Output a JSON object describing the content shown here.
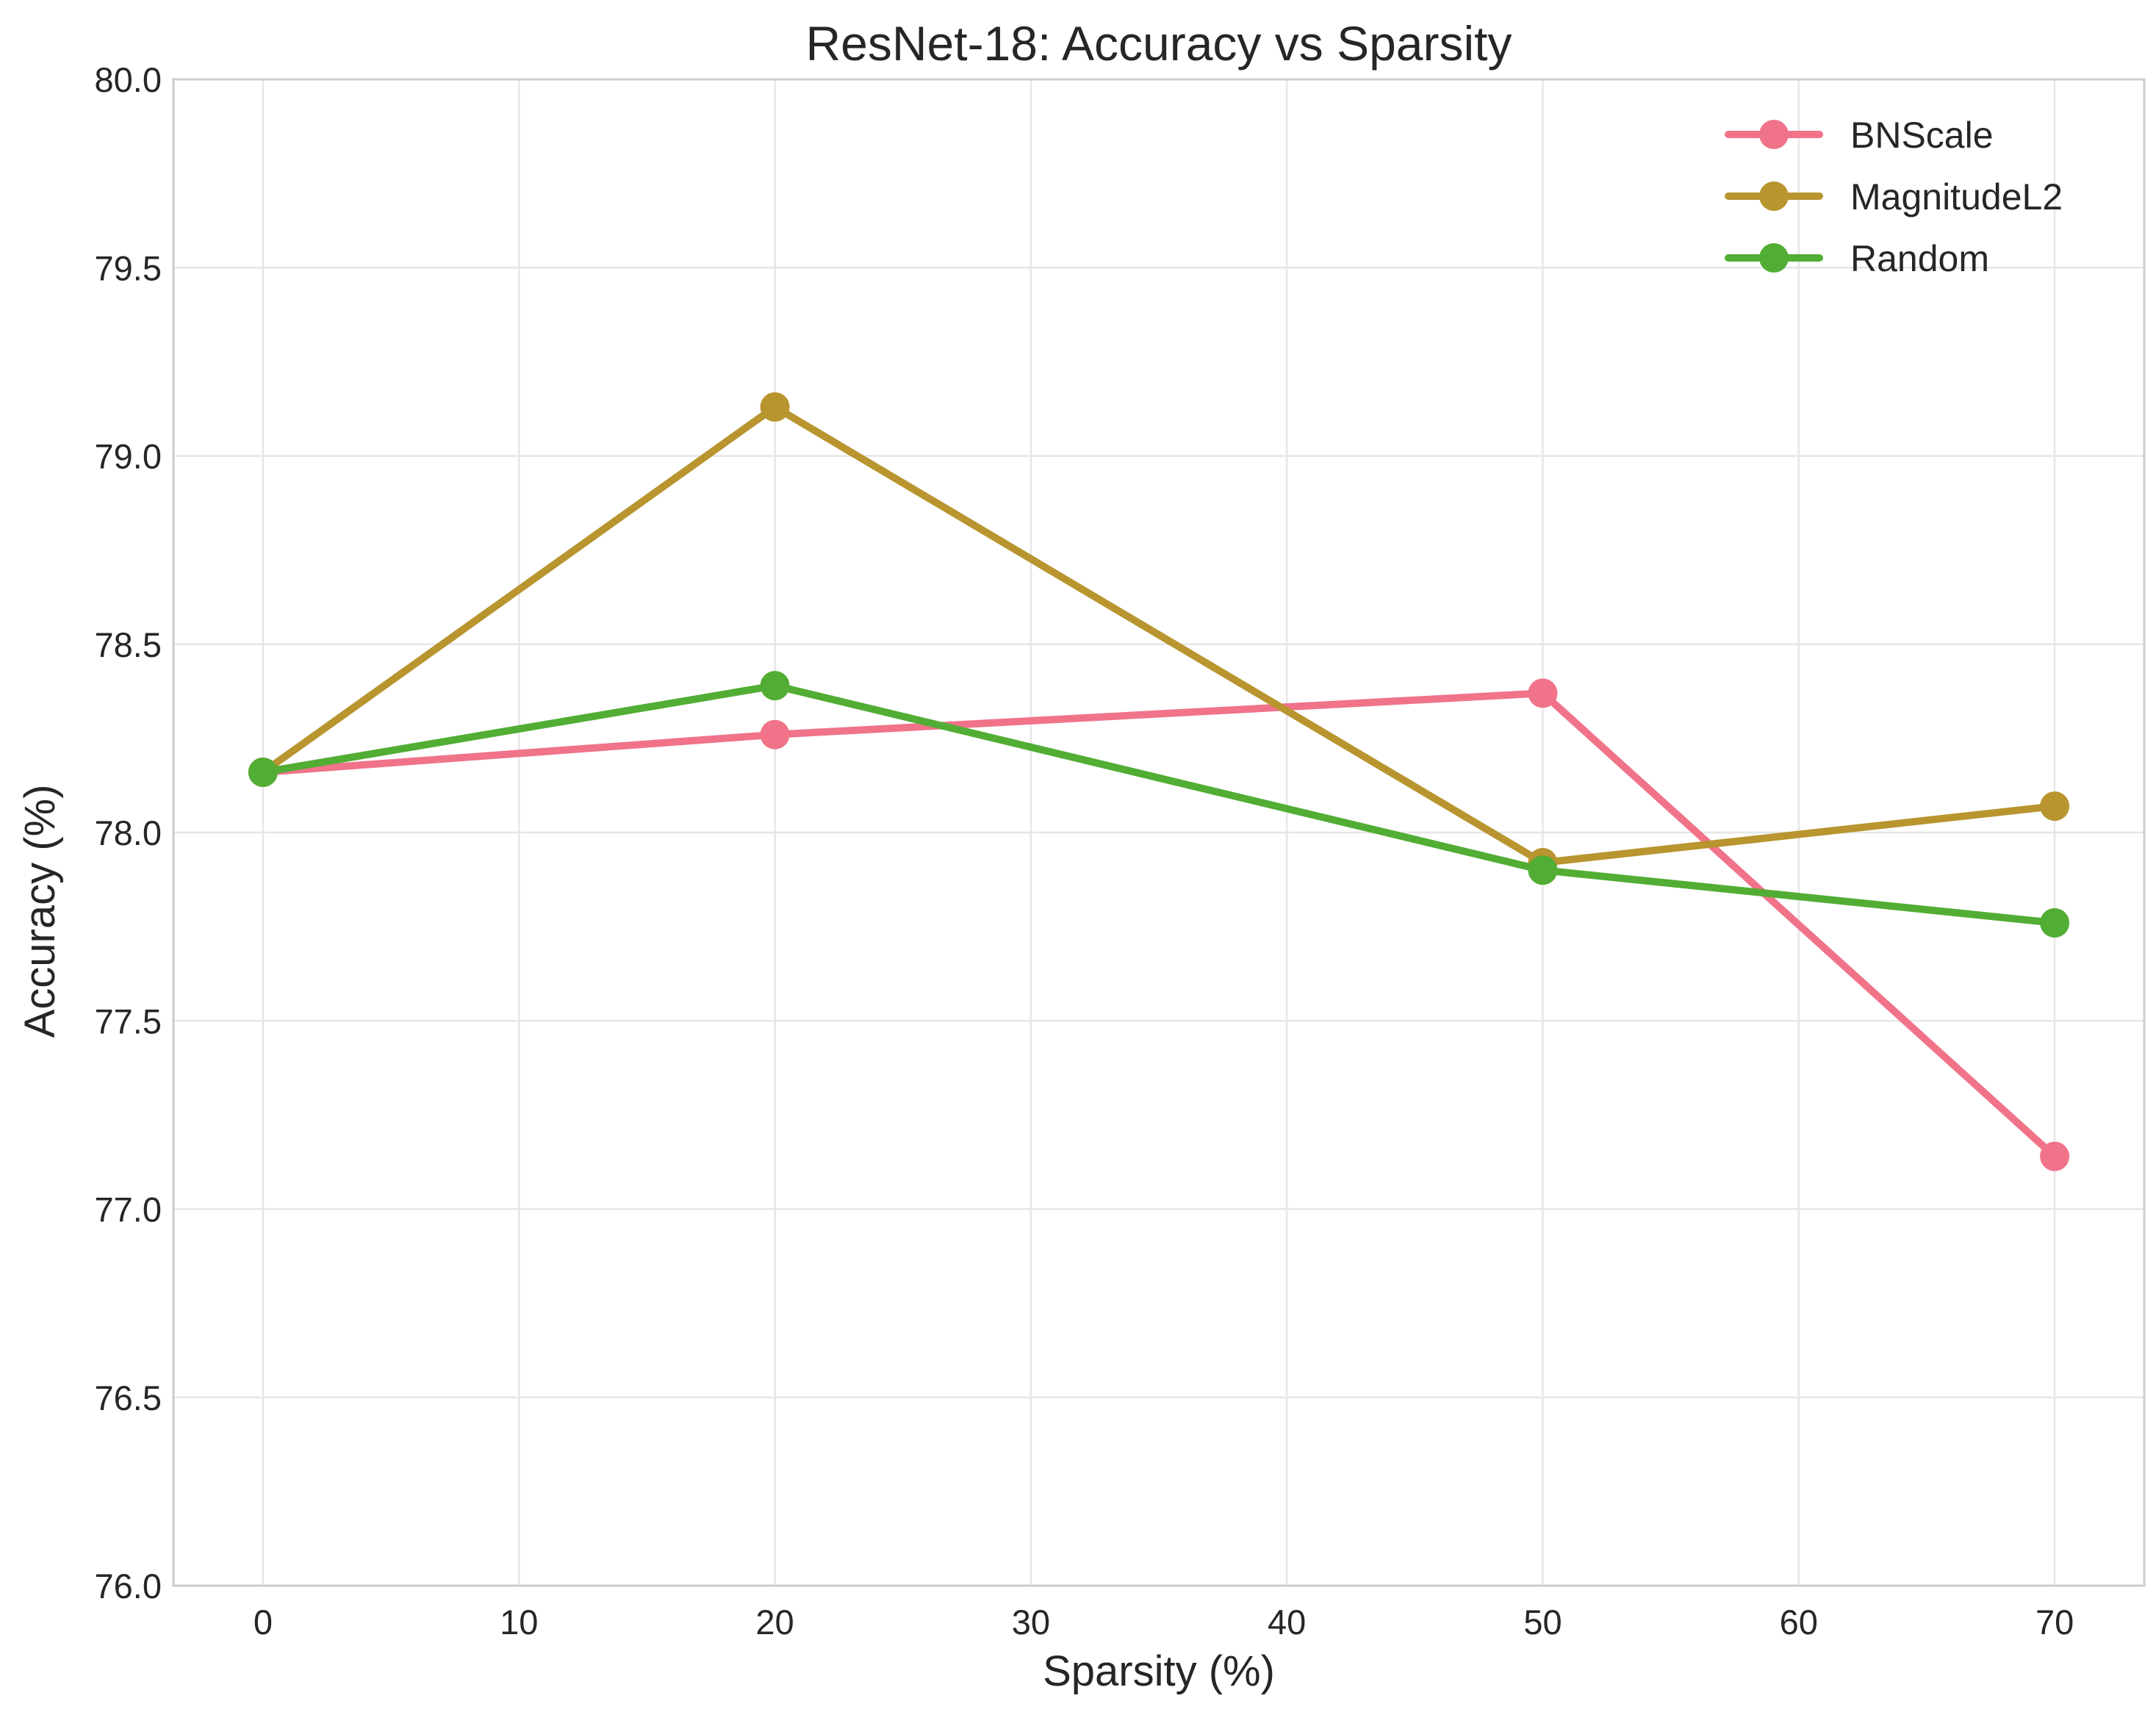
{
  "chart_data": {
    "type": "line",
    "title": "ResNet-18: Accuracy vs Sparsity",
    "xlabel": "Sparsity (%)",
    "ylabel": "Accuracy (%)",
    "xlim": [
      -3.5,
      73.5
    ],
    "ylim": [
      76.0,
      80.0
    ],
    "xticks": [
      0,
      10,
      20,
      30,
      40,
      50,
      60,
      70
    ],
    "yticks": [
      76.0,
      76.5,
      77.0,
      77.5,
      78.0,
      78.5,
      79.0,
      79.5,
      80.0
    ],
    "grid": true,
    "legend_position": "top-right",
    "x": [
      0,
      20,
      50,
      70
    ],
    "series": [
      {
        "name": "BNScale",
        "color": "#f0738a",
        "values": [
          78.16,
          78.26,
          78.37,
          77.14
        ]
      },
      {
        "name": "MagnitudeL2",
        "color": "#b8952f",
        "values": [
          78.16,
          79.13,
          77.92,
          78.07
        ]
      },
      {
        "name": "Random",
        "color": "#52ad34",
        "values": [
          78.16,
          78.39,
          77.9,
          77.76
        ]
      }
    ]
  }
}
